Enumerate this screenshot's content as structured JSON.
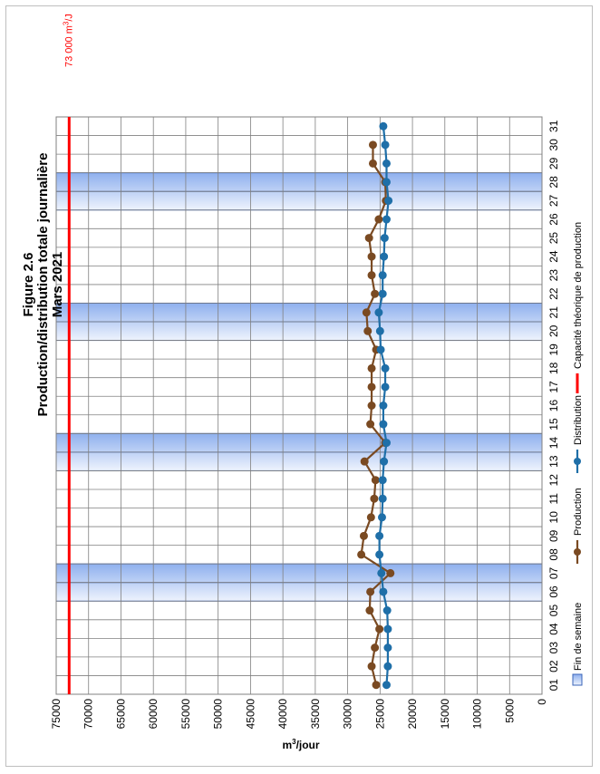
{
  "chart_data": {
    "type": "line",
    "title": [
      "Figure 2.6",
      "Production/distribution totale journalière",
      "Mars 2021"
    ],
    "ylabel_base": "m",
    "ylabel_sup": "3",
    "ylabel_rest": "/jour",
    "ylim": [
      0,
      75000
    ],
    "yticks": [
      "0",
      "5000",
      "10000",
      "15000",
      "20000",
      "25000",
      "30000",
      "35000",
      "40000",
      "45000",
      "50000",
      "55000",
      "60000",
      "65000",
      "70000",
      "75000"
    ],
    "categories": [
      "01",
      "02",
      "03",
      "04",
      "05",
      "06",
      "07",
      "08",
      "09",
      "10",
      "11",
      "12",
      "13",
      "14",
      "15",
      "16",
      "17",
      "18",
      "19",
      "20",
      "21",
      "22",
      "23",
      "24",
      "25",
      "26",
      "27",
      "28",
      "29",
      "30",
      "31"
    ],
    "weekend_bands": [
      [
        "06",
        "07"
      ],
      [
        "13",
        "14"
      ],
      [
        "20",
        "21"
      ],
      [
        "27",
        "28"
      ]
    ],
    "capacity": {
      "value": 73000,
      "label_main": "73 000 m",
      "label_sup": "3",
      "label_tail": "/J",
      "color": "#ff0000"
    },
    "series": [
      {
        "name": "Production",
        "color": "#7a4a22",
        "values": [
          25600,
          26300,
          25800,
          25100,
          26600,
          26500,
          23400,
          27900,
          27500,
          26400,
          25900,
          25700,
          27400,
          24200,
          26500,
          26300,
          26300,
          26300,
          25600,
          26900,
          27100,
          25800,
          26300,
          26300,
          26700,
          25200,
          24100,
          24200,
          26100,
          26100,
          null
        ]
      },
      {
        "name": "Distribution",
        "color": "#1f6fa8",
        "values": [
          24000,
          23800,
          23800,
          23800,
          23900,
          24500,
          24800,
          25100,
          25100,
          24700,
          24600,
          24600,
          24400,
          24000,
          24500,
          24500,
          24200,
          24200,
          24900,
          25000,
          25200,
          24600,
          24600,
          24400,
          24300,
          24000,
          23700,
          24000,
          24000,
          24200,
          24500
        ]
      }
    ],
    "legend": {
      "weekend": "Fin de semaine",
      "capacity": "Capacité théorique de production"
    },
    "colors": {
      "weekend_fill_light": "#e6eefc",
      "weekend_fill_dark": "#8fb0ee",
      "weekend_stroke": "#3a64b8",
      "grid": "#808080"
    }
  }
}
